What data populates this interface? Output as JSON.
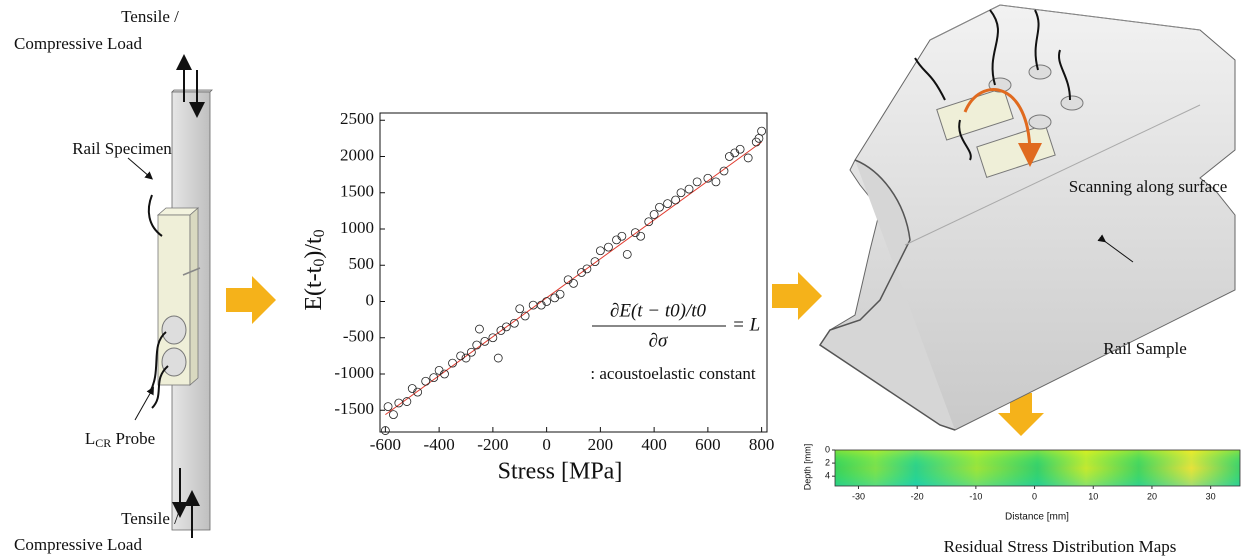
{
  "specimen": {
    "top_load": [
      "Tensile /",
      "Compressive Load"
    ],
    "bottom_load": [
      "Tensile /",
      "Compressive Load"
    ],
    "specimen_label": "Rail Specimen",
    "probe_label": [
      "L",
      "CR",
      " Probe"
    ]
  },
  "chart": {
    "type": "scatter",
    "x_label": "Stress [MPa]",
    "y_label": [
      "E(t-t",
      "0",
      ")/t",
      "0"
    ],
    "xlim": [
      -620,
      820
    ],
    "ylim": [
      -1800,
      2600
    ],
    "xticks": [
      -600,
      -400,
      -200,
      0,
      200,
      400,
      600,
      800
    ],
    "yticks": [
      -1500,
      -1000,
      -500,
      0,
      500,
      1000,
      1500,
      2000,
      2500
    ],
    "x": [
      -600,
      -590,
      -570,
      -550,
      -520,
      -500,
      -480,
      -450,
      -420,
      -400,
      -380,
      -350,
      -320,
      -300,
      -280,
      -260,
      -250,
      -230,
      -200,
      -180,
      -170,
      -150,
      -120,
      -100,
      -80,
      -50,
      -20,
      0,
      30,
      50,
      80,
      100,
      130,
      150,
      180,
      200,
      230,
      260,
      280,
      300,
      330,
      350,
      380,
      400,
      420,
      450,
      480,
      500,
      530,
      560,
      600,
      630,
      660,
      680,
      700,
      720,
      750,
      780,
      800,
      790
    ],
    "y": [
      -1780,
      -1450,
      -1560,
      -1400,
      -1380,
      -1200,
      -1250,
      -1100,
      -1050,
      -950,
      -1000,
      -850,
      -750,
      -780,
      -700,
      -600,
      -380,
      -550,
      -500,
      -780,
      -400,
      -350,
      -300,
      -100,
      -200,
      -50,
      -50,
      0,
      50,
      100,
      300,
      250,
      400,
      450,
      550,
      700,
      750,
      850,
      900,
      650,
      950,
      900,
      1100,
      1200,
      1300,
      1350,
      1400,
      1500,
      1550,
      1650,
      1700,
      1650,
      1800,
      2000,
      2050,
      2100,
      1980,
      2200,
      2350,
      2250
    ],
    "fit": {
      "x": [
        -600,
        800
      ],
      "y": [
        -1560,
        2200
      ],
      "color": "#e03b2f"
    },
    "equation": {
      "numerator": "∂E(t − t0)/t0",
      "denominator": "∂σ",
      "rhs": "= L"
    },
    "constant_note": ": acoustoelastic constant"
  },
  "rail": {
    "scan_label": "Scanning along surface",
    "sample_label": "Rail Sample",
    "map": {
      "y_label": "Depth [mm]",
      "x_label": "Distance [mm]",
      "xlim": [
        -34,
        35
      ],
      "ylim": [
        0,
        5.5
      ],
      "xticks": [
        -30,
        -20,
        -10,
        0,
        10,
        20,
        30
      ],
      "yticks": [
        0,
        2,
        4
      ]
    },
    "map_title": "Residual Stress Distribution Maps"
  }
}
